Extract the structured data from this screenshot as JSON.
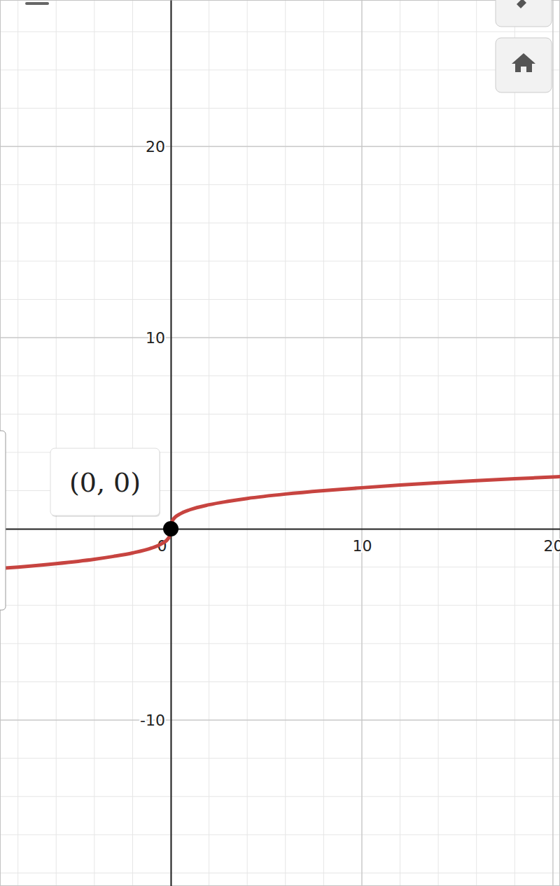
{
  "chart_data": {
    "type": "line",
    "x": [
      -8.94,
      -8,
      -6,
      -4,
      -3,
      -2,
      -1,
      -0.5,
      -0.1,
      0,
      0.1,
      0.5,
      1,
      2,
      3,
      4,
      6,
      8,
      10,
      12,
      14,
      16,
      18,
      20,
      20.4
    ],
    "values": [
      -2.07,
      -2,
      -1.82,
      -1.59,
      -1.44,
      -1.26,
      -1,
      -0.79,
      -0.46,
      0,
      0.46,
      0.79,
      1,
      1.26,
      1.44,
      1.59,
      1.82,
      2,
      2.15,
      2.29,
      2.41,
      2.52,
      2.62,
      2.71,
      2.73
    ],
    "color": "#c74440",
    "xlim": [
      -8.94,
      20.37
    ],
    "ylim": [
      -18.68,
      27.66
    ],
    "xticks": [
      0,
      10,
      20
    ],
    "yticks": [
      -10,
      10,
      20
    ],
    "grid": true,
    "annotations": [
      {
        "text": "(0, 0)",
        "x": 0,
        "y": 0
      }
    ]
  }
}
